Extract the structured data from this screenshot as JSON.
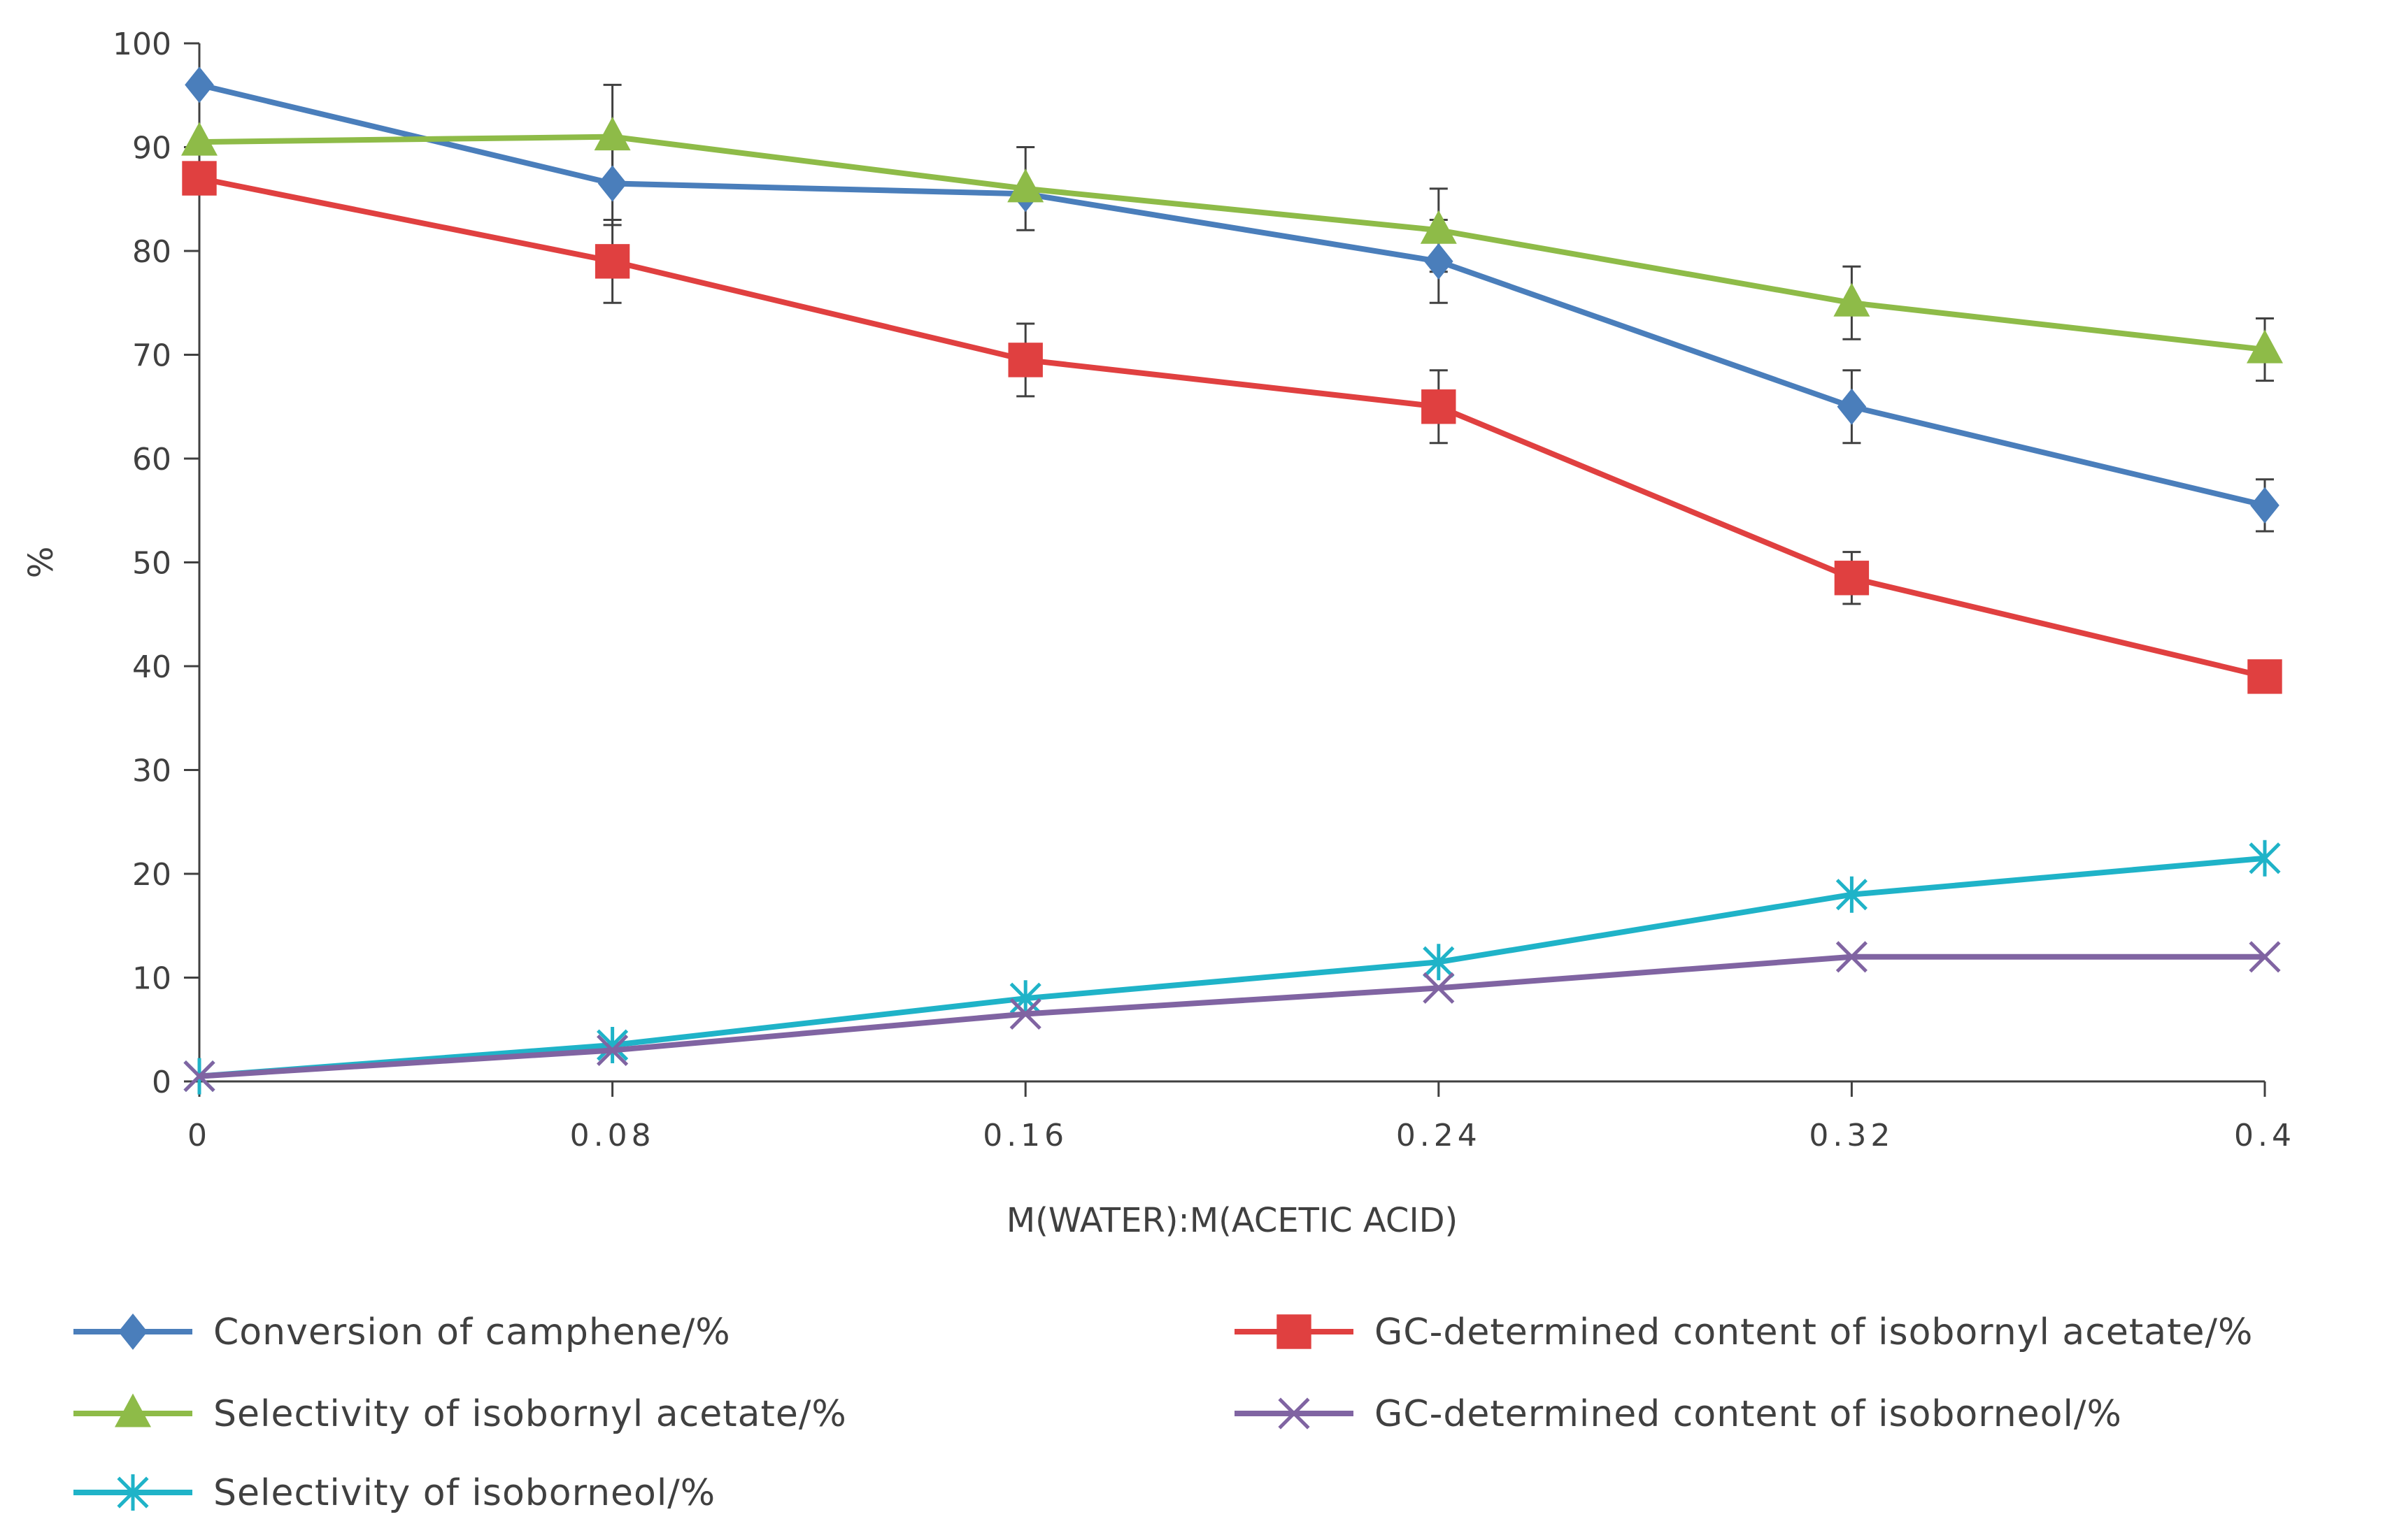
{
  "chart_data": {
    "type": "line",
    "title": "",
    "xlabel": "M(WATER):M(ACETIC ACID)",
    "ylabel": "%",
    "x": [
      0,
      0.08,
      0.16,
      0.24,
      0.32,
      0.4
    ],
    "x_tick_labels": [
      "0",
      "0.08",
      "0.16",
      "0.24",
      "0.32",
      "0.4"
    ],
    "ylim": [
      0,
      100
    ],
    "y_ticks": [
      0,
      10,
      20,
      30,
      40,
      50,
      60,
      70,
      80,
      90,
      100
    ],
    "grid": false,
    "legend_position": "bottom",
    "series": [
      {
        "name": "Conversion of camphene/%",
        "color": "#4a7ebb",
        "marker": "diamond",
        "values": [
          96,
          86.5,
          85.5,
          79,
          65,
          55.5
        ],
        "errors": [
          0,
          4,
          0,
          4,
          3.5,
          2.5
        ]
      },
      {
        "name": "GC-determined content of isobornyl acetate/%",
        "color": "#e04040",
        "marker": "square",
        "values": [
          87,
          79,
          69.5,
          65,
          48.5,
          39
        ],
        "errors": [
          0,
          4,
          3.5,
          3.5,
          2.5,
          1.5
        ]
      },
      {
        "name": "Selectivity of isobornyl acetate/%",
        "color": "#8ebb48",
        "marker": "triangle",
        "values": [
          90.5,
          91,
          86,
          82,
          75,
          70.5
        ],
        "errors": [
          0,
          5,
          4,
          4,
          3.5,
          3
        ]
      },
      {
        "name": "GC-determined content of isoborneol/%",
        "color": "#8064a2",
        "marker": "x",
        "values": [
          0.5,
          3,
          6.5,
          9,
          12,
          12
        ],
        "errors": [
          0,
          0,
          0,
          0,
          0,
          0
        ]
      },
      {
        "name": "Selectivity of isoborneol/%",
        "color": "#1fb3c8",
        "marker": "star",
        "values": [
          0.5,
          3.5,
          8,
          11.5,
          18,
          21.5
        ],
        "errors": [
          0,
          0,
          0,
          0,
          0,
          0
        ]
      }
    ],
    "legend_order": [
      0,
      1,
      2,
      3,
      4
    ]
  }
}
